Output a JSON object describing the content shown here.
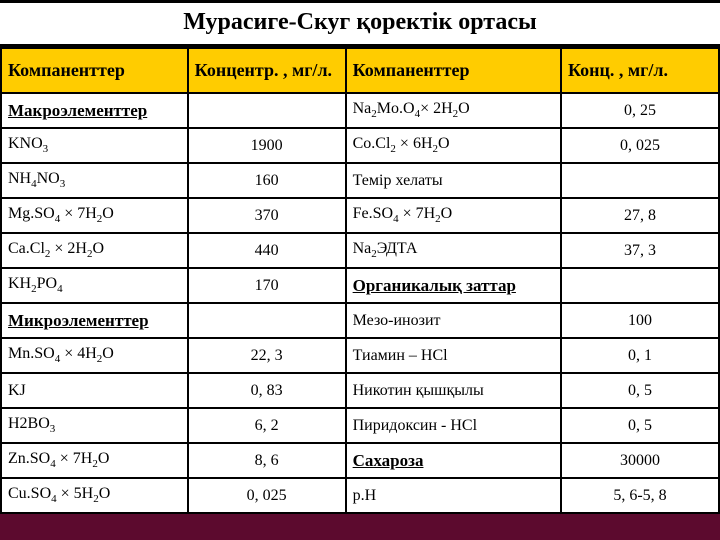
{
  "title": "Мурасиге-Скуг қоректік ортасы",
  "colors": {
    "page_bg": "#5c0a2e",
    "cell_bg": "#ffffff",
    "header_bg": "#ffcc00",
    "border": "#000000",
    "text": "#000000"
  },
  "headers": {
    "col1": "Компаненттер",
    "col2": "Концентр. , мг/л.",
    "col3": "Компаненттер",
    "col4": "Конц. , мг/л."
  },
  "rows": [
    {
      "c1": "Макроэлементтер",
      "c1_style": "section",
      "c2": "",
      "c3_html": "Na<sub>2</sub>Mo.O<sub>4</sub>× 2H<sub>2</sub>O",
      "c4": "0, 25"
    },
    {
      "c1_html": "KNO<sub>3</sub>",
      "c2": "1900",
      "c3_html": "Co.Cl<sub>2</sub> × 6H<sub>2</sub>O",
      "c4": "0, 025"
    },
    {
      "c1_html": "NH<sub>4</sub>NO<sub>3</sub>",
      "c2": "160",
      "c3": "Темір хелаты",
      "c4": ""
    },
    {
      "c1_html": "Mg.SO<sub>4</sub> × 7H<sub>2</sub>O",
      "c2": "370",
      "c3_html": "Fe.SO<sub>4</sub> × 7H<sub>2</sub>O",
      "c4": "27, 8"
    },
    {
      "c1_html": "Ca.Cl<sub>2</sub> × 2H<sub>2</sub>O",
      "c2": "440",
      "c3_html": "Na<sub>2</sub>ЭДТА",
      "c4": "37, 3"
    },
    {
      "c1_html": "KH<sub>2</sub>PO<sub>4</sub>",
      "c2": "170",
      "c3": "Органикалық заттар",
      "c3_style": "underline",
      "c4": ""
    },
    {
      "c1": "Микроэлементтер",
      "c1_style": "section",
      "c2": "",
      "c3": "Мезо-инозит",
      "c4": "100"
    },
    {
      "c1_html": "Mn.SO<sub>4</sub> × 4H<sub>2</sub>O",
      "c2": "22, 3",
      "c3": "Тиамин – HCl",
      "c4": "0, 1"
    },
    {
      "c1": "KJ",
      "c2": "0, 83",
      "c3": "Никотин қышқылы",
      "c4": "0, 5"
    },
    {
      "c1_html": "H2BO<sub>3</sub>",
      "c2": "6, 2",
      "c3": "Пиридоксин - HCl",
      "c4": "0, 5"
    },
    {
      "c1_html": "Zn.SO<sub>4</sub> × 7H<sub>2</sub>O",
      "c2": "8, 6",
      "c3": "Сахароза",
      "c3_style": "underline",
      "c4": "30000"
    },
    {
      "c1_html": "Cu.SO<sub>4</sub> × 5H<sub>2</sub>O",
      "c2": "0, 025",
      "c3": "p.H",
      "c4": "5, 6-5, 8"
    }
  ]
}
